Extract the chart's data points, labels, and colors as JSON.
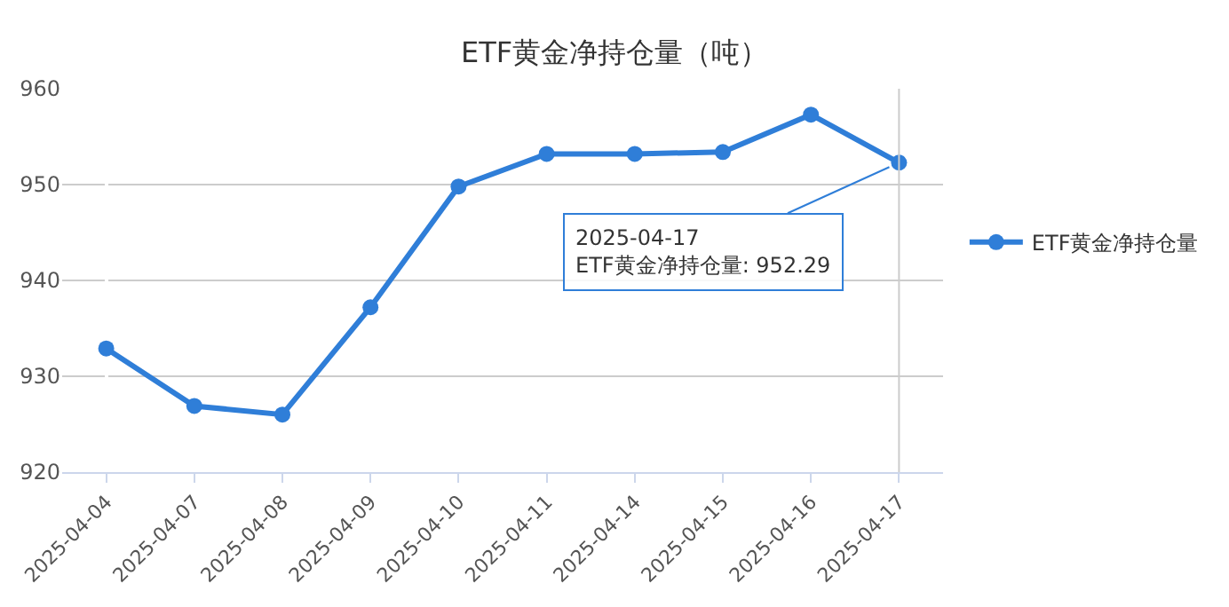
{
  "chart_data": {
    "type": "line",
    "title": "ETF黄金净持仓量（吨）",
    "categories": [
      "2025-04-04",
      "2025-04-07",
      "2025-04-08",
      "2025-04-09",
      "2025-04-10",
      "2025-04-11",
      "2025-04-14",
      "2025-04-15",
      "2025-04-16",
      "2025-04-17"
    ],
    "series": [
      {
        "name": "ETF黄金净持仓量",
        "color": "#2f7ed8",
        "values": [
          932.9,
          926.9,
          926.0,
          937.2,
          949.8,
          953.2,
          953.2,
          953.4,
          957.3,
          952.29
        ]
      }
    ],
    "ylim": [
      920,
      960
    ],
    "yticks": [
      920,
      930,
      940,
      950,
      960
    ],
    "grid": "y",
    "legend": "right",
    "marker": "circle",
    "line_style": "solid",
    "ref_lines": [
      {
        "axis": "x",
        "value": "2025-04-17",
        "color": "#cccccc"
      }
    ],
    "annotations": [
      {
        "text": "2025-04-17\nETF黄金净持仓量: 952.29",
        "x": "2025-04-17",
        "y": 952.29
      }
    ]
  }
}
